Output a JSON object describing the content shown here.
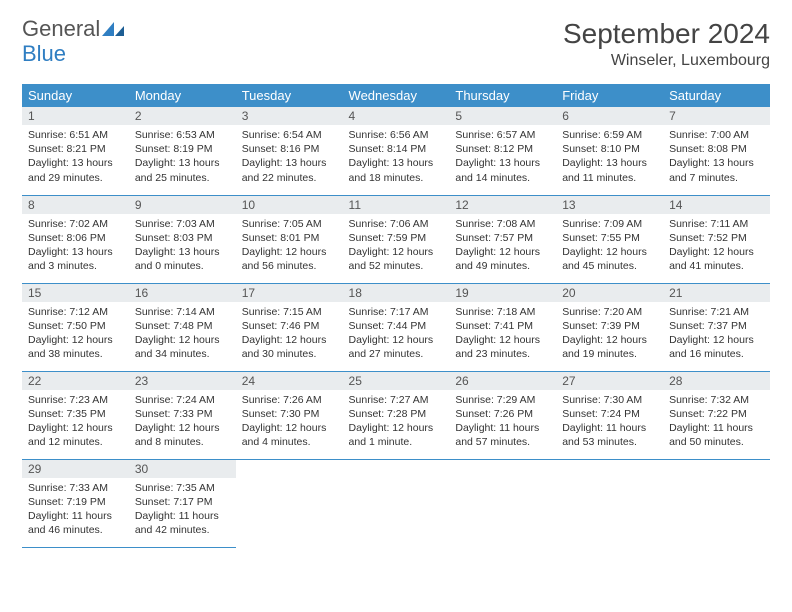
{
  "logo": {
    "word1": "General",
    "word2": "Blue"
  },
  "title": "September 2024",
  "location": "Winseler, Luxembourg",
  "colors": {
    "header_bg": "#3d8fc9",
    "header_text": "#ffffff",
    "daynum_bg": "#e9ecee",
    "row_border": "#3d8fc9",
    "text": "#333333",
    "logo_gray": "#555555",
    "logo_blue": "#2f7ec2",
    "page_bg": "#ffffff"
  },
  "typography": {
    "title_fontsize": 28,
    "location_fontsize": 16,
    "weekday_fontsize": 13,
    "daynum_fontsize": 12,
    "body_fontsize": 10.5,
    "font_family": "Arial"
  },
  "layout": {
    "columns": 7,
    "rows": 5,
    "first_day_column_index": 0
  },
  "weekdays": [
    "Sunday",
    "Monday",
    "Tuesday",
    "Wednesday",
    "Thursday",
    "Friday",
    "Saturday"
  ],
  "days": [
    {
      "n": "1",
      "sunrise": "Sunrise: 6:51 AM",
      "sunset": "Sunset: 8:21 PM",
      "day1": "Daylight: 13 hours",
      "day2": "and 29 minutes."
    },
    {
      "n": "2",
      "sunrise": "Sunrise: 6:53 AM",
      "sunset": "Sunset: 8:19 PM",
      "day1": "Daylight: 13 hours",
      "day2": "and 25 minutes."
    },
    {
      "n": "3",
      "sunrise": "Sunrise: 6:54 AM",
      "sunset": "Sunset: 8:16 PM",
      "day1": "Daylight: 13 hours",
      "day2": "and 22 minutes."
    },
    {
      "n": "4",
      "sunrise": "Sunrise: 6:56 AM",
      "sunset": "Sunset: 8:14 PM",
      "day1": "Daylight: 13 hours",
      "day2": "and 18 minutes."
    },
    {
      "n": "5",
      "sunrise": "Sunrise: 6:57 AM",
      "sunset": "Sunset: 8:12 PM",
      "day1": "Daylight: 13 hours",
      "day2": "and 14 minutes."
    },
    {
      "n": "6",
      "sunrise": "Sunrise: 6:59 AM",
      "sunset": "Sunset: 8:10 PM",
      "day1": "Daylight: 13 hours",
      "day2": "and 11 minutes."
    },
    {
      "n": "7",
      "sunrise": "Sunrise: 7:00 AM",
      "sunset": "Sunset: 8:08 PM",
      "day1": "Daylight: 13 hours",
      "day2": "and 7 minutes."
    },
    {
      "n": "8",
      "sunrise": "Sunrise: 7:02 AM",
      "sunset": "Sunset: 8:06 PM",
      "day1": "Daylight: 13 hours",
      "day2": "and 3 minutes."
    },
    {
      "n": "9",
      "sunrise": "Sunrise: 7:03 AM",
      "sunset": "Sunset: 8:03 PM",
      "day1": "Daylight: 13 hours",
      "day2": "and 0 minutes."
    },
    {
      "n": "10",
      "sunrise": "Sunrise: 7:05 AM",
      "sunset": "Sunset: 8:01 PM",
      "day1": "Daylight: 12 hours",
      "day2": "and 56 minutes."
    },
    {
      "n": "11",
      "sunrise": "Sunrise: 7:06 AM",
      "sunset": "Sunset: 7:59 PM",
      "day1": "Daylight: 12 hours",
      "day2": "and 52 minutes."
    },
    {
      "n": "12",
      "sunrise": "Sunrise: 7:08 AM",
      "sunset": "Sunset: 7:57 PM",
      "day1": "Daylight: 12 hours",
      "day2": "and 49 minutes."
    },
    {
      "n": "13",
      "sunrise": "Sunrise: 7:09 AM",
      "sunset": "Sunset: 7:55 PM",
      "day1": "Daylight: 12 hours",
      "day2": "and 45 minutes."
    },
    {
      "n": "14",
      "sunrise": "Sunrise: 7:11 AM",
      "sunset": "Sunset: 7:52 PM",
      "day1": "Daylight: 12 hours",
      "day2": "and 41 minutes."
    },
    {
      "n": "15",
      "sunrise": "Sunrise: 7:12 AM",
      "sunset": "Sunset: 7:50 PM",
      "day1": "Daylight: 12 hours",
      "day2": "and 38 minutes."
    },
    {
      "n": "16",
      "sunrise": "Sunrise: 7:14 AM",
      "sunset": "Sunset: 7:48 PM",
      "day1": "Daylight: 12 hours",
      "day2": "and 34 minutes."
    },
    {
      "n": "17",
      "sunrise": "Sunrise: 7:15 AM",
      "sunset": "Sunset: 7:46 PM",
      "day1": "Daylight: 12 hours",
      "day2": "and 30 minutes."
    },
    {
      "n": "18",
      "sunrise": "Sunrise: 7:17 AM",
      "sunset": "Sunset: 7:44 PM",
      "day1": "Daylight: 12 hours",
      "day2": "and 27 minutes."
    },
    {
      "n": "19",
      "sunrise": "Sunrise: 7:18 AM",
      "sunset": "Sunset: 7:41 PM",
      "day1": "Daylight: 12 hours",
      "day2": "and 23 minutes."
    },
    {
      "n": "20",
      "sunrise": "Sunrise: 7:20 AM",
      "sunset": "Sunset: 7:39 PM",
      "day1": "Daylight: 12 hours",
      "day2": "and 19 minutes."
    },
    {
      "n": "21",
      "sunrise": "Sunrise: 7:21 AM",
      "sunset": "Sunset: 7:37 PM",
      "day1": "Daylight: 12 hours",
      "day2": "and 16 minutes."
    },
    {
      "n": "22",
      "sunrise": "Sunrise: 7:23 AM",
      "sunset": "Sunset: 7:35 PM",
      "day1": "Daylight: 12 hours",
      "day2": "and 12 minutes."
    },
    {
      "n": "23",
      "sunrise": "Sunrise: 7:24 AM",
      "sunset": "Sunset: 7:33 PM",
      "day1": "Daylight: 12 hours",
      "day2": "and 8 minutes."
    },
    {
      "n": "24",
      "sunrise": "Sunrise: 7:26 AM",
      "sunset": "Sunset: 7:30 PM",
      "day1": "Daylight: 12 hours",
      "day2": "and 4 minutes."
    },
    {
      "n": "25",
      "sunrise": "Sunrise: 7:27 AM",
      "sunset": "Sunset: 7:28 PM",
      "day1": "Daylight: 12 hours",
      "day2": "and 1 minute."
    },
    {
      "n": "26",
      "sunrise": "Sunrise: 7:29 AM",
      "sunset": "Sunset: 7:26 PM",
      "day1": "Daylight: 11 hours",
      "day2": "and 57 minutes."
    },
    {
      "n": "27",
      "sunrise": "Sunrise: 7:30 AM",
      "sunset": "Sunset: 7:24 PM",
      "day1": "Daylight: 11 hours",
      "day2": "and 53 minutes."
    },
    {
      "n": "28",
      "sunrise": "Sunrise: 7:32 AM",
      "sunset": "Sunset: 7:22 PM",
      "day1": "Daylight: 11 hours",
      "day2": "and 50 minutes."
    },
    {
      "n": "29",
      "sunrise": "Sunrise: 7:33 AM",
      "sunset": "Sunset: 7:19 PM",
      "day1": "Daylight: 11 hours",
      "day2": "and 46 minutes."
    },
    {
      "n": "30",
      "sunrise": "Sunrise: 7:35 AM",
      "sunset": "Sunset: 7:17 PM",
      "day1": "Daylight: 11 hours",
      "day2": "and 42 minutes."
    }
  ]
}
